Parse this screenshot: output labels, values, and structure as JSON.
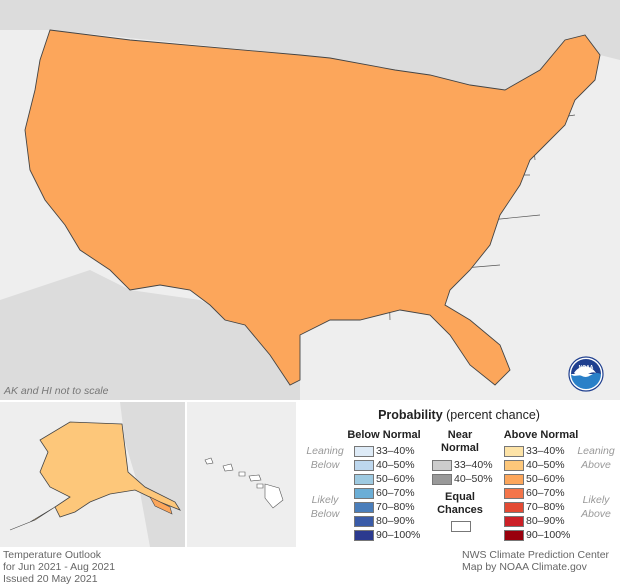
{
  "map": {
    "scale_note": "AK and HI not to scale",
    "colors": {
      "background_land": "#d9d9d9",
      "background_water": "#eeeeee",
      "equal_chances": "#ffffff",
      "above_33_40": "#fde3a7",
      "above_40_50": "#fdc77a",
      "above_50_60": "#fca65b",
      "above_60_70": "#f4754a",
      "state_lines": "#555555"
    },
    "logo": "noaa-logo"
  },
  "legend": {
    "title_bold": "Probability",
    "title_rest": " (percent chance)",
    "below": {
      "heading": "Below Normal",
      "leaning": "Leaning Below",
      "likely": "Likely Below",
      "items": [
        {
          "label": "33–40%",
          "color": "#deebf7"
        },
        {
          "label": "40–50%",
          "color": "#bdd7ee"
        },
        {
          "label": "50–60%",
          "color": "#9ecae1"
        },
        {
          "label": "60–70%",
          "color": "#6baed6"
        },
        {
          "label": "70–80%",
          "color": "#4a7ebb"
        },
        {
          "label": "80–90%",
          "color": "#3a5ba8"
        },
        {
          "label": "90–100%",
          "color": "#2b3a8f"
        }
      ]
    },
    "near": {
      "heading_line1": "Near",
      "heading_line2": "Normal",
      "items": [
        {
          "label": "33–40%",
          "color": "#cccccc"
        },
        {
          "label": "40–50%",
          "color": "#999999"
        }
      ],
      "equal_line1": "Equal",
      "equal_line2": "Chances",
      "equal_color": "#ffffff"
    },
    "above": {
      "heading": "Above Normal",
      "leaning": "Leaning Above",
      "likely": "Likely Above",
      "items": [
        {
          "label": "33–40%",
          "color": "#fde3a7"
        },
        {
          "label": "40–50%",
          "color": "#fdc77a"
        },
        {
          "label": "50–60%",
          "color": "#fca65b"
        },
        {
          "label": "60–70%",
          "color": "#f4754a"
        },
        {
          "label": "70–80%",
          "color": "#e34a33"
        },
        {
          "label": "80–90%",
          "color": "#cc2027"
        },
        {
          "label": "90–100%",
          "color": "#99000d"
        }
      ]
    }
  },
  "footer": {
    "left_line1": "Temperature Outlook",
    "left_line2": "for Jun 2021 - Aug 2021",
    "left_line3": "Issued 20 May 2021",
    "right_line1": "NWS Climate Prediction Center",
    "right_line2": "Map by NOAA Climate.gov"
  }
}
